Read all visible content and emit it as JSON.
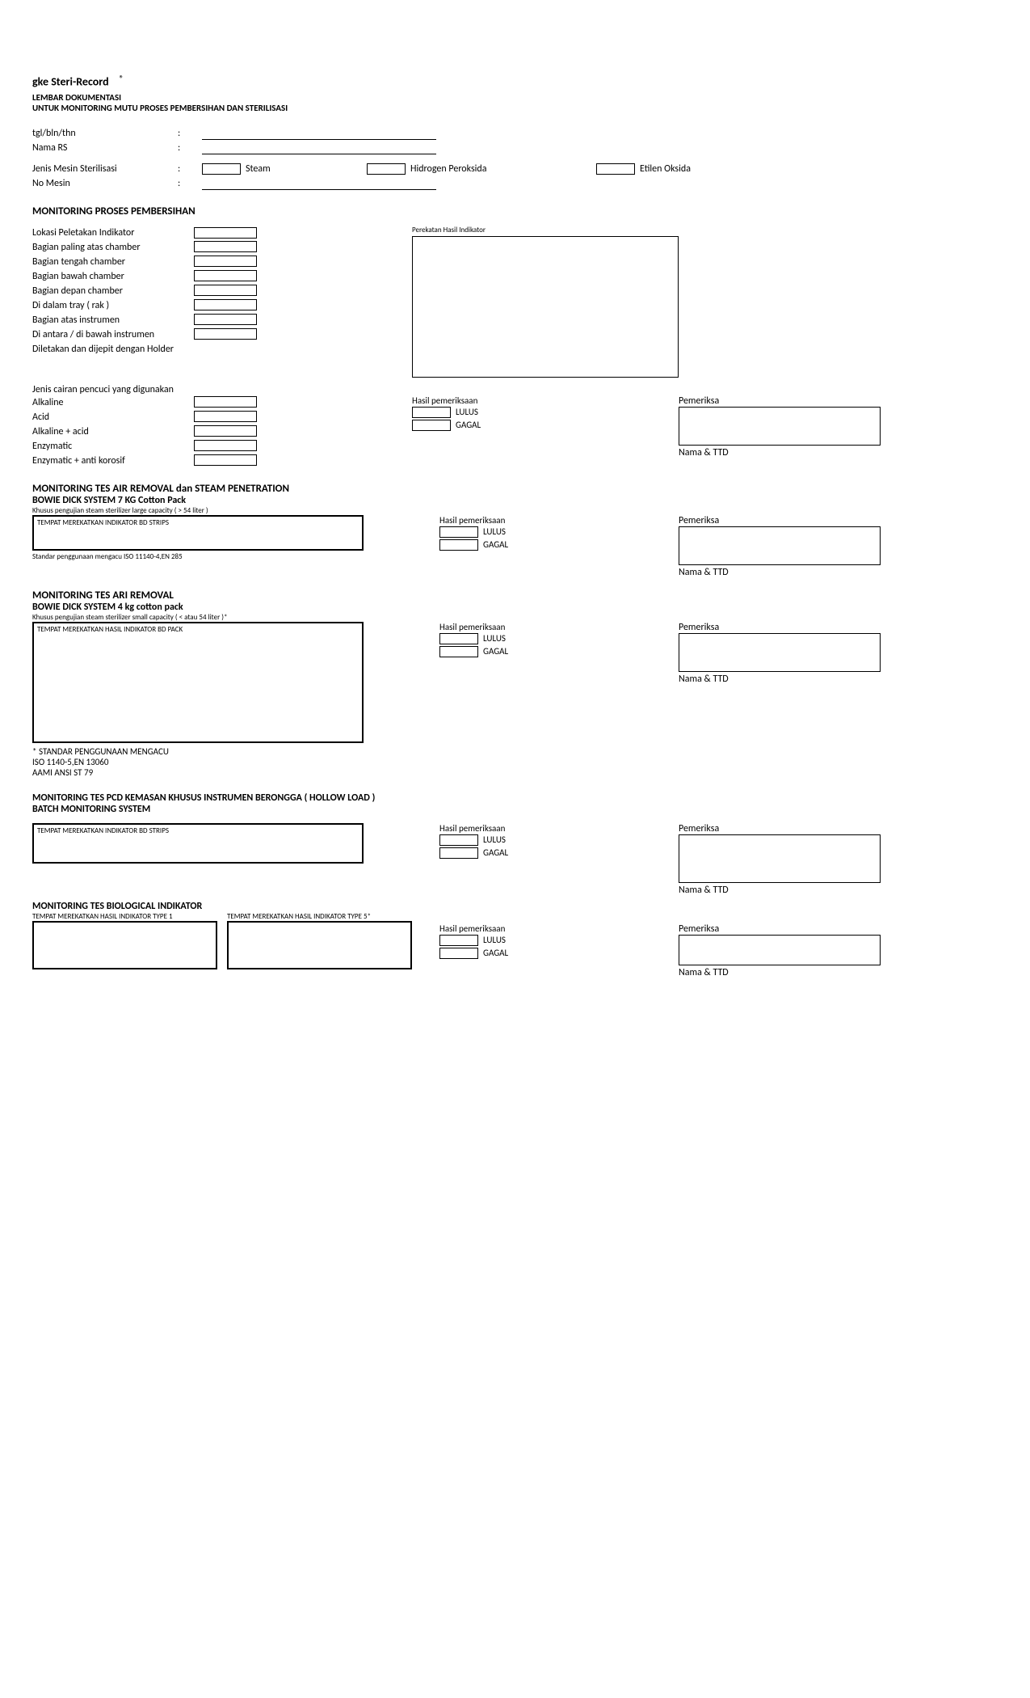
{
  "header": {
    "brand": "gke Steri-Record",
    "brand_super": "®",
    "line1": "LEMBAR DOKUMENTASI",
    "line2": "UNTUK MONITORING MUTU PROSES PEMBERSIHAN DAN STERILISASI"
  },
  "info": {
    "date_label": "tgl/bln/thn",
    "rs_label": "Nama RS",
    "machine_type_label": "Jenis Mesin Sterilisasi",
    "machine_no_label": "No Mesin",
    "opt_steam": "Steam",
    "opt_hp": "Hidrogen Peroksida",
    "opt_eo": "Etilen Oksida"
  },
  "clean": {
    "title": "MONITORING PROSES PEMBERSIHAN",
    "loc_label": "Lokasi Peletakan Indikator",
    "rows": [
      "Bagian paling atas chamber",
      "Bagian tengah chamber",
      "Bagian bawah chamber",
      "Bagian depan chamber",
      "Di dalam tray ( rak )",
      "Bagian atas instrumen",
      "Di antara / di bawah instrumen",
      "Diletakan dan dijepit dengan Holder"
    ],
    "paste_label": "Perekatan Hasil Indikator",
    "fluid_label": "Jenis cairan pencuci yang digunakan",
    "fluids": [
      "Alkaline",
      "Acid",
      "Alkaline + acid",
      "Enzymatic",
      "Enzymatic + anti korosif"
    ],
    "result_label": "Hasil pemeriksaan",
    "pass": "LULUS",
    "fail": "GAGAL",
    "inspector": "Pemeriksa",
    "name_ttd": "Nama & TTD"
  },
  "bd7": {
    "title": "MONITORING TES AIR REMOVAL dan STEAM PENETRATION",
    "sub": "BOWIE DICK SYSTEM 7 KG Cotton Pack",
    "note": "Khusus pengujian steam sterilizer large capacity ( > 54 liter )",
    "box_hdr": "TEMPAT MEREKATKAN INDIKATOR BD STRIPS",
    "std": "Standar penggunaan mengacu ISO 11140-4,EN 285"
  },
  "bd4": {
    "title": "MONITORING TES ARI REMOVAL",
    "sub": "BOWIE DICK SYSTEM 4 kg cotton pack",
    "note": "Khusus pengujian steam sterilizer small capacity ( < atau 54 liter )*",
    "box_hdr": "TEMPAT MEREKATKAN HASIL INDIKATOR BD PACK",
    "std1": "* STANDAR PENGGUNAAN MENGACU",
    "std2": "ISO 1140-5,EN 13060",
    "std3": "AAMI ANSI ST 79"
  },
  "pcd": {
    "title": "MONITORING TES PCD KEMASAN KHUSUS INSTRUMEN BERONGGA ( HOLLOW LOAD )",
    "sub": "BATCH MONITORING SYSTEM",
    "box_hdr": "TEMPAT MEREKATKAN INDIKATOR BD STRIPS"
  },
  "bio": {
    "title": "MONITORING TES BIOLOGICAL INDIKATOR",
    "box1": "TEMPAT MEREKATKAN HASIL INDIKATOR TYPE 1",
    "box2": "TEMPAT MEREKATKAN HASIL INDIKATOR TYPE 5*"
  }
}
